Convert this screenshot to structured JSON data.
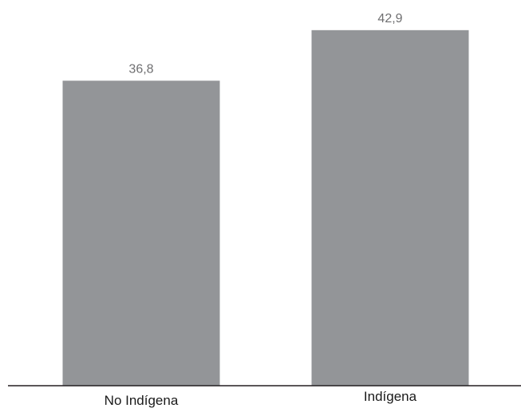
{
  "chart_data": {
    "type": "bar",
    "categories": [
      "No Indígena",
      "Indígena"
    ],
    "values": [
      36.8,
      42.9
    ],
    "value_labels": [
      "36,8",
      "42,9"
    ],
    "title": "",
    "xlabel": "",
    "ylabel": "",
    "ylim": [
      0,
      45
    ],
    "grid": false,
    "legend": "none",
    "bar_color": "#939598",
    "axis_color": "#231f20"
  }
}
